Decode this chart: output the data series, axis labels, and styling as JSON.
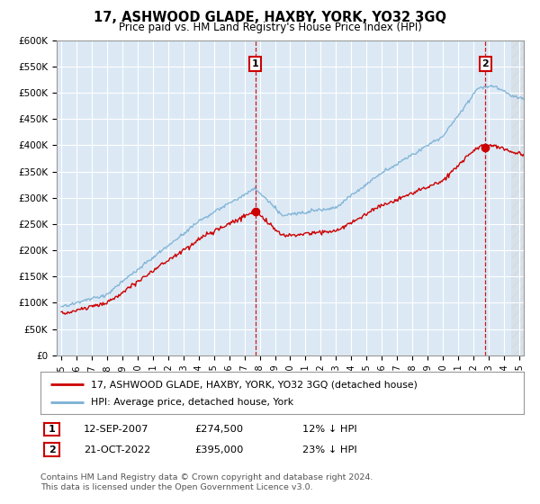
{
  "title": "17, ASHWOOD GLADE, HAXBY, YORK, YO32 3GQ",
  "subtitle": "Price paid vs. HM Land Registry's House Price Index (HPI)",
  "bg_color": "#dce9f5",
  "red_color": "#cc0000",
  "blue_color": "#7ab0d4",
  "sale1_year": 2007.708,
  "sale1_price": 274500,
  "sale2_year": 2022.792,
  "sale2_price": 395000,
  "sale1_date": "12-SEP-2007",
  "sale2_date": "21-OCT-2022",
  "sale1_pct": "12% ↓ HPI",
  "sale2_pct": "23% ↓ HPI",
  "ylim": [
    0,
    600000
  ],
  "yticks": [
    0,
    50000,
    100000,
    150000,
    200000,
    250000,
    300000,
    350000,
    400000,
    450000,
    500000,
    550000,
    600000
  ],
  "ytick_labels": [
    "£0",
    "£50K",
    "£100K",
    "£150K",
    "£200K",
    "£250K",
    "£300K",
    "£350K",
    "£400K",
    "£450K",
    "£500K",
    "£550K",
    "£600K"
  ],
  "xlim_left": 1994.7,
  "xlim_right": 2025.3,
  "legend_line1": "17, ASHWOOD GLADE, HAXBY, YORK, YO32 3GQ (detached house)",
  "legend_line2": "HPI: Average price, detached house, York",
  "footer": "Contains HM Land Registry data © Crown copyright and database right 2024.\nThis data is licensed under the Open Government Licence v3.0."
}
